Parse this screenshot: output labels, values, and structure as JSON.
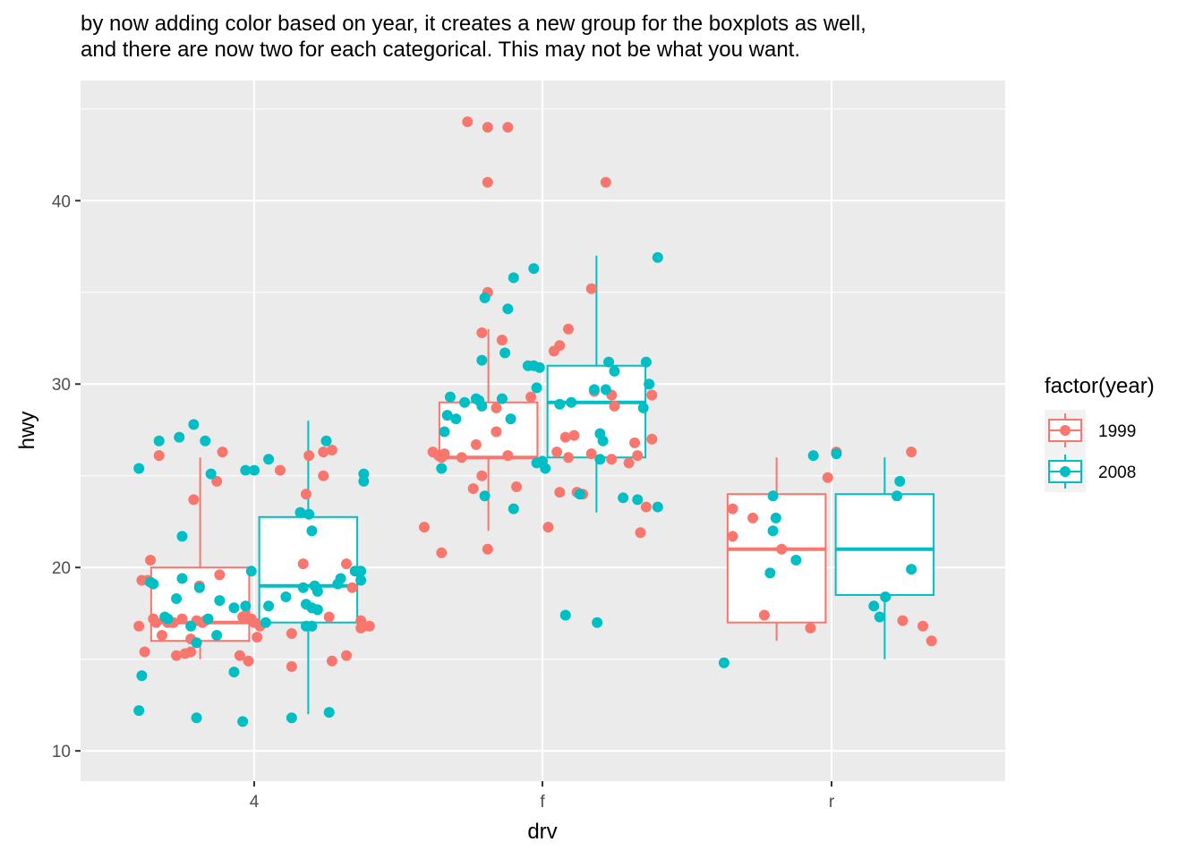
{
  "subtitle": {
    "line1": "by now adding color based on year, it creates a new group for the boxplots as well,",
    "line2": "and there are now two for each categorical.  This may not be what you want."
  },
  "chart_data": {
    "type": "boxplot",
    "xlabel": "drv",
    "ylabel": "hwy",
    "categories": [
      "4",
      "f",
      "r"
    ],
    "ylim": [
      10,
      45
    ],
    "yticks": [
      10,
      20,
      30,
      40
    ],
    "grid": true,
    "legend": {
      "title": "factor(year)",
      "position": "right",
      "entries": [
        {
          "label": "1999",
          "color": "#F8766D"
        },
        {
          "label": "2008",
          "color": "#00BFC4"
        }
      ]
    },
    "boxes": [
      {
        "category": "4",
        "series": "1999",
        "min": 15,
        "q1": 16,
        "median": 17,
        "q3": 20,
        "max": 26
      },
      {
        "category": "4",
        "series": "2008",
        "min": 12,
        "q1": 17,
        "median": 19,
        "q3": 22.75,
        "max": 28
      },
      {
        "category": "f",
        "series": "1999",
        "min": 22,
        "q1": 26,
        "median": 26,
        "q3": 29,
        "max": 33
      },
      {
        "category": "f",
        "series": "2008",
        "min": 23,
        "q1": 26,
        "median": 29,
        "q3": 31,
        "max": 37
      },
      {
        "category": "r",
        "series": "1999",
        "min": 16,
        "q1": 17,
        "median": 21,
        "q3": 24,
        "max": 26
      },
      {
        "category": "r",
        "series": "2008",
        "min": 15,
        "q1": 18.5,
        "median": 21,
        "q3": 24,
        "max": 26
      }
    ],
    "points": {
      "1999": [
        {
          "x": -0.4,
          "y": 16.8
        },
        {
          "x": -0.39,
          "y": 19.3
        },
        {
          "x": -0.38,
          "y": 15.4
        },
        {
          "x": -0.37,
          "y": 19.3
        },
        {
          "x": -0.36,
          "y": 20.4
        },
        {
          "x": -0.35,
          "y": 17.2
        },
        {
          "x": -0.34,
          "y": 17.0
        },
        {
          "x": -0.33,
          "y": 26.1
        },
        {
          "x": -0.32,
          "y": 16.3
        },
        {
          "x": -0.3,
          "y": 17.0
        },
        {
          "x": -0.28,
          "y": 17.0
        },
        {
          "x": -0.27,
          "y": 15.2
        },
        {
          "x": -0.25,
          "y": 17.2
        },
        {
          "x": -0.24,
          "y": 15.3
        },
        {
          "x": -0.22,
          "y": 16.1
        },
        {
          "x": -0.22,
          "y": 15.4
        },
        {
          "x": -0.21,
          "y": 23.7
        },
        {
          "x": -0.2,
          "y": 17.1
        },
        {
          "x": -0.19,
          "y": 19.0
        },
        {
          "x": -0.18,
          "y": 17.0
        },
        {
          "x": -0.17,
          "y": 17.1
        },
        {
          "x": -0.13,
          "y": 24.7
        },
        {
          "x": -0.12,
          "y": 19.6
        },
        {
          "x": -0.11,
          "y": 26.3
        },
        {
          "x": -0.05,
          "y": 15.2
        },
        {
          "x": -0.04,
          "y": 17.3
        },
        {
          "x": -0.03,
          "y": 17.4
        },
        {
          "x": -0.02,
          "y": 14.9
        },
        {
          "x": -0.01,
          "y": 17.2
        },
        {
          "x": 0.0,
          "y": 17.0
        },
        {
          "x": 0.01,
          "y": 16.2
        },
        {
          "x": 0.02,
          "y": 16.8
        },
        {
          "x": 0.09,
          "y": 25.3
        },
        {
          "x": 0.13,
          "y": 16.4
        },
        {
          "x": 0.13,
          "y": 14.6
        },
        {
          "x": 0.17,
          "y": 20.2
        },
        {
          "x": 0.18,
          "y": 24.0
        },
        {
          "x": 0.19,
          "y": 26.1
        },
        {
          "x": 0.2,
          "y": 16.8
        },
        {
          "x": 0.24,
          "y": 25.0
        },
        {
          "x": 0.24,
          "y": 26.3
        },
        {
          "x": 0.26,
          "y": 17.3
        },
        {
          "x": 0.27,
          "y": 26.4
        },
        {
          "x": 0.27,
          "y": 14.9
        },
        {
          "x": 0.32,
          "y": 20.2
        },
        {
          "x": 0.32,
          "y": 15.2
        },
        {
          "x": 0.34,
          "y": 18.9
        },
        {
          "x": 0.37,
          "y": 17.1
        },
        {
          "x": 0.37,
          "y": 16.7
        },
        {
          "x": 0.38,
          "y": 16.8
        },
        {
          "x": 0.4,
          "y": 16.8
        },
        {
          "x": 0.59,
          "y": 22.2
        },
        {
          "x": 0.62,
          "y": 26.3
        },
        {
          "x": 0.64,
          "y": 26.1
        },
        {
          "x": 0.65,
          "y": 20.8
        },
        {
          "x": 0.65,
          "y": 26.0
        },
        {
          "x": 0.66,
          "y": 26.2
        },
        {
          "x": 0.72,
          "y": 26.0
        },
        {
          "x": 0.74,
          "y": 44.3
        },
        {
          "x": 0.76,
          "y": 24.3
        },
        {
          "x": 0.77,
          "y": 26.7
        },
        {
          "x": 0.79,
          "y": 32.8
        },
        {
          "x": 0.79,
          "y": 25.0
        },
        {
          "x": 0.81,
          "y": 35.0
        },
        {
          "x": 0.81,
          "y": 44.0
        },
        {
          "x": 0.81,
          "y": 41.0
        },
        {
          "x": 0.81,
          "y": 21.0
        },
        {
          "x": 0.84,
          "y": 27.4
        },
        {
          "x": 0.84,
          "y": 28.7
        },
        {
          "x": 0.86,
          "y": 32.4
        },
        {
          "x": 0.88,
          "y": 44.0
        },
        {
          "x": 0.88,
          "y": 26.1
        },
        {
          "x": 0.91,
          "y": 24.4
        },
        {
          "x": 0.96,
          "y": 29.3
        },
        {
          "x": 1.02,
          "y": 22.2
        },
        {
          "x": 1.04,
          "y": 31.8
        },
        {
          "x": 1.05,
          "y": 26.3
        },
        {
          "x": 1.06,
          "y": 24.1
        },
        {
          "x": 1.06,
          "y": 32.1
        },
        {
          "x": 1.08,
          "y": 27.1
        },
        {
          "x": 1.09,
          "y": 33.0
        },
        {
          "x": 1.09,
          "y": 26.0
        },
        {
          "x": 1.11,
          "y": 27.2
        },
        {
          "x": 1.12,
          "y": 24.1
        },
        {
          "x": 1.14,
          "y": 24.0
        },
        {
          "x": 1.17,
          "y": 35.2
        },
        {
          "x": 1.17,
          "y": 26.2
        },
        {
          "x": 1.18,
          "y": 29.6
        },
        {
          "x": 1.22,
          "y": 41.0
        },
        {
          "x": 1.24,
          "y": 25.9
        },
        {
          "x": 1.24,
          "y": 29.4
        },
        {
          "x": 1.25,
          "y": 28.8
        },
        {
          "x": 1.3,
          "y": 25.7
        },
        {
          "x": 1.32,
          "y": 26.8
        },
        {
          "x": 1.33,
          "y": 26.1
        },
        {
          "x": 1.34,
          "y": 21.9
        },
        {
          "x": 1.36,
          "y": 23.3
        },
        {
          "x": 1.38,
          "y": 27.0
        },
        {
          "x": 1.38,
          "y": 29.4
        },
        {
          "x": 1.66,
          "y": 23.2
        },
        {
          "x": 1.66,
          "y": 21.7
        },
        {
          "x": 1.73,
          "y": 22.7
        },
        {
          "x": 1.77,
          "y": 17.4
        },
        {
          "x": 1.83,
          "y": 21.0
        },
        {
          "x": 1.93,
          "y": 16.7
        },
        {
          "x": 1.99,
          "y": 24.9
        },
        {
          "x": 2.02,
          "y": 26.3
        },
        {
          "x": 2.25,
          "y": 17.1
        },
        {
          "x": 2.28,
          "y": 26.3
        },
        {
          "x": 2.32,
          "y": 16.8
        },
        {
          "x": 2.35,
          "y": 16.0
        }
      ],
      "2008": [
        {
          "x": -0.4,
          "y": 25.4
        },
        {
          "x": -0.4,
          "y": 12.2
        },
        {
          "x": -0.39,
          "y": 14.1
        },
        {
          "x": -0.36,
          "y": 19.2
        },
        {
          "x": -0.35,
          "y": 19.1
        },
        {
          "x": -0.33,
          "y": 26.9
        },
        {
          "x": -0.31,
          "y": 17.3
        },
        {
          "x": -0.3,
          "y": 17.2
        },
        {
          "x": -0.27,
          "y": 18.3
        },
        {
          "x": -0.26,
          "y": 27.1
        },
        {
          "x": -0.25,
          "y": 19.4
        },
        {
          "x": -0.25,
          "y": 21.7
        },
        {
          "x": -0.22,
          "y": 16.8
        },
        {
          "x": -0.21,
          "y": 27.8
        },
        {
          "x": -0.2,
          "y": 15.9
        },
        {
          "x": -0.2,
          "y": 11.8
        },
        {
          "x": -0.19,
          "y": 18.9
        },
        {
          "x": -0.17,
          "y": 26.9
        },
        {
          "x": -0.16,
          "y": 17.2
        },
        {
          "x": -0.15,
          "y": 25.1
        },
        {
          "x": -0.13,
          "y": 16.3
        },
        {
          "x": -0.12,
          "y": 18.2
        },
        {
          "x": -0.07,
          "y": 14.3
        },
        {
          "x": -0.07,
          "y": 17.8
        },
        {
          "x": -0.04,
          "y": 11.6
        },
        {
          "x": -0.03,
          "y": 17.9
        },
        {
          "x": -0.03,
          "y": 25.3
        },
        {
          "x": -0.01,
          "y": 19.8
        },
        {
          "x": 0.0,
          "y": 25.3
        },
        {
          "x": 0.04,
          "y": 17.0
        },
        {
          "x": 0.05,
          "y": 17.9
        },
        {
          "x": 0.05,
          "y": 25.9
        },
        {
          "x": 0.11,
          "y": 18.4
        },
        {
          "x": 0.13,
          "y": 11.8
        },
        {
          "x": 0.16,
          "y": 23.0
        },
        {
          "x": 0.17,
          "y": 18.9
        },
        {
          "x": 0.18,
          "y": 16.8
        },
        {
          "x": 0.18,
          "y": 18.0
        },
        {
          "x": 0.19,
          "y": 22.9
        },
        {
          "x": 0.2,
          "y": 17.8
        },
        {
          "x": 0.2,
          "y": 16.8
        },
        {
          "x": 0.2,
          "y": 22.0
        },
        {
          "x": 0.21,
          "y": 19.0
        },
        {
          "x": 0.22,
          "y": 18.7
        },
        {
          "x": 0.22,
          "y": 17.7
        },
        {
          "x": 0.25,
          "y": 26.9
        },
        {
          "x": 0.26,
          "y": 12.1
        },
        {
          "x": 0.29,
          "y": 19.1
        },
        {
          "x": 0.3,
          "y": 19.4
        },
        {
          "x": 0.35,
          "y": 19.8
        },
        {
          "x": 0.37,
          "y": 19.8
        },
        {
          "x": 0.37,
          "y": 19.3
        },
        {
          "x": 0.38,
          "y": 25.1
        },
        {
          "x": 0.38,
          "y": 24.7
        },
        {
          "x": 0.65,
          "y": 25.4
        },
        {
          "x": 0.66,
          "y": 27.4
        },
        {
          "x": 0.67,
          "y": 28.3
        },
        {
          "x": 0.68,
          "y": 29.3
        },
        {
          "x": 0.7,
          "y": 28.1
        },
        {
          "x": 0.73,
          "y": 29.0
        },
        {
          "x": 0.77,
          "y": 29.2
        },
        {
          "x": 0.78,
          "y": 29.1
        },
        {
          "x": 0.79,
          "y": 31.3
        },
        {
          "x": 0.79,
          "y": 28.8
        },
        {
          "x": 0.8,
          "y": 23.9
        },
        {
          "x": 0.8,
          "y": 34.7
        },
        {
          "x": 0.86,
          "y": 29.2
        },
        {
          "x": 0.87,
          "y": 31.7
        },
        {
          "x": 0.88,
          "y": 34.1
        },
        {
          "x": 0.89,
          "y": 28.1
        },
        {
          "x": 0.9,
          "y": 35.8
        },
        {
          "x": 0.9,
          "y": 23.2
        },
        {
          "x": 0.95,
          "y": 31.0
        },
        {
          "x": 0.97,
          "y": 31.0
        },
        {
          "x": 0.97,
          "y": 36.3
        },
        {
          "x": 0.98,
          "y": 29.8
        },
        {
          "x": 0.98,
          "y": 25.7
        },
        {
          "x": 0.99,
          "y": 30.9
        },
        {
          "x": 1.0,
          "y": 25.8
        },
        {
          "x": 1.01,
          "y": 25.4
        },
        {
          "x": 1.06,
          "y": 28.9
        },
        {
          "x": 1.08,
          "y": 17.4
        },
        {
          "x": 1.1,
          "y": 29.0
        },
        {
          "x": 1.13,
          "y": 24.0
        },
        {
          "x": 1.18,
          "y": 29.7
        },
        {
          "x": 1.19,
          "y": 17.0
        },
        {
          "x": 1.2,
          "y": 27.3
        },
        {
          "x": 1.2,
          "y": 25.9
        },
        {
          "x": 1.21,
          "y": 26.9
        },
        {
          "x": 1.22,
          "y": 29.7
        },
        {
          "x": 1.23,
          "y": 31.2
        },
        {
          "x": 1.25,
          "y": 30.7
        },
        {
          "x": 1.28,
          "y": 23.8
        },
        {
          "x": 1.33,
          "y": 23.7
        },
        {
          "x": 1.35,
          "y": 28.7
        },
        {
          "x": 1.36,
          "y": 31.2
        },
        {
          "x": 1.37,
          "y": 30.0
        },
        {
          "x": 1.4,
          "y": 36.9
        },
        {
          "x": 1.4,
          "y": 23.3
        },
        {
          "x": 1.63,
          "y": 14.8
        },
        {
          "x": 1.79,
          "y": 19.7
        },
        {
          "x": 1.8,
          "y": 23.9
        },
        {
          "x": 1.8,
          "y": 22.0
        },
        {
          "x": 1.81,
          "y": 22.7
        },
        {
          "x": 1.88,
          "y": 20.4
        },
        {
          "x": 1.94,
          "y": 26.1
        },
        {
          "x": 2.02,
          "y": 26.2
        },
        {
          "x": 2.15,
          "y": 17.9
        },
        {
          "x": 2.17,
          "y": 17.3
        },
        {
          "x": 2.19,
          "y": 18.4
        },
        {
          "x": 2.23,
          "y": 23.9
        },
        {
          "x": 2.24,
          "y": 24.7
        },
        {
          "x": 2.28,
          "y": 19.9
        }
      ]
    }
  }
}
